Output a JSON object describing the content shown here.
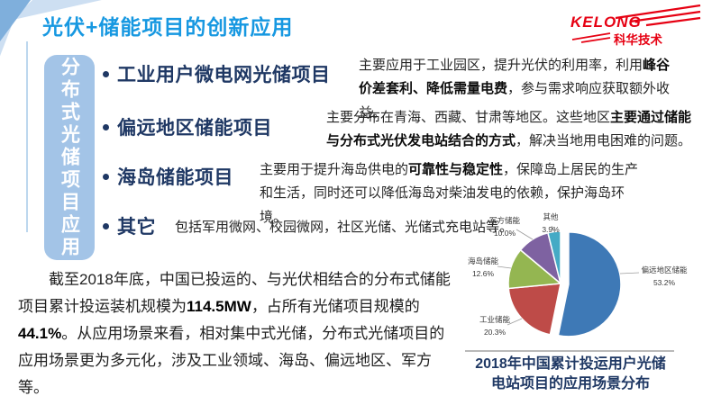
{
  "slide": {
    "title": "光伏+储能项目的创新应用",
    "logo": {
      "brand": "KELONG",
      "sub": "科华技术",
      "color": "#E60012"
    },
    "side_tab": "分布式光储项目应用",
    "bullets": [
      {
        "heading": "工业用户微电网光储项目",
        "desc_pre": "主要应用于工业园区，提升光伏的利用率，利用",
        "desc_bold": "峰谷价差套利、降低需量电费",
        "desc_post": "，参与需求响应获取额外收益。"
      },
      {
        "heading": "偏远地区储能项目",
        "desc_pre": "主要分布在青海、西藏、甘肃等地区。这些地区",
        "desc_bold": "主要通过储能与分布式光伏发电站结合的方式",
        "desc_post": "，解决当地用电困难的问题。"
      },
      {
        "heading": "海岛储能项目",
        "desc_pre": "主要用于提升海岛供电的",
        "desc_bold": "可靠性与稳定性",
        "desc_post": "，保障岛上居民的生产和生活，同时还可以降低海岛对柴油发电的依赖，保护海岛环境。"
      },
      {
        "heading": "其它",
        "desc_pre": "包括军用微网、校园微网，社区光储、光储式充电站等。",
        "desc_bold": "",
        "desc_post": ""
      }
    ],
    "summary": {
      "p1": "截至2018年底，中国已投运的、与光伏相结合的分布式储能项目累计投运装机规模为",
      "b1": "114.5MW",
      "p2": "，占所有光储项目规模的",
      "b2": "44.1%",
      "p3": "。从应用场景来看，相对集中式光储，分布式光储项目的应用场景更为多元化，涉及工业领域、海岛、偏远地区、军方等。"
    },
    "chart_caption": {
      "line1": "2018年中国累计投运用户光储",
      "line2": "电站项目的应用场景分布"
    }
  },
  "chart_data": {
    "type": "pie",
    "title": "2018年中国累计投运用户光储电站项目的应用场景分布",
    "categories": [
      "偏远地区储能",
      "工业储能",
      "海岛储能",
      "军方储能",
      "其他"
    ],
    "values": [
      53.2,
      20.3,
      12.6,
      10.0,
      3.9
    ],
    "colors": [
      "#3E79B6",
      "#BE4B48",
      "#94B651",
      "#7E62A1",
      "#45AAC5"
    ],
    "exploded_index": 0,
    "legend_position": "none",
    "labels": "category+percent"
  }
}
